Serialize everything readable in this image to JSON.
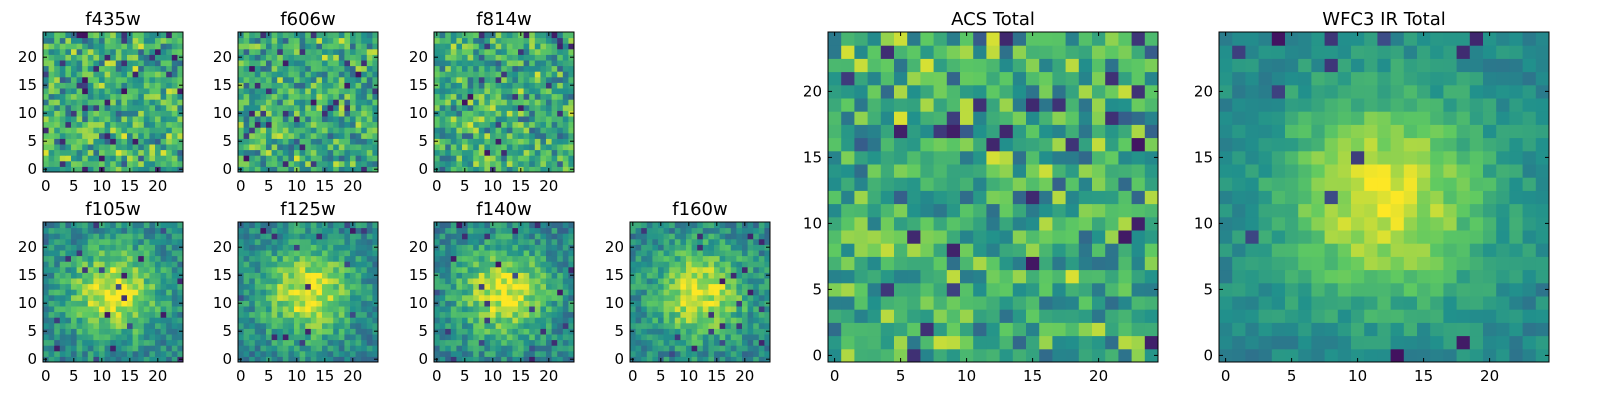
{
  "chart_data": [
    {
      "type": "heatmap",
      "title": "f435w",
      "xticks": [
        0,
        5,
        10,
        15,
        20
      ],
      "yticks": [
        0,
        5,
        10,
        15,
        20
      ],
      "xlim": [
        0,
        25
      ],
      "ylim": [
        0,
        25
      ],
      "grid": false,
      "seed": 11,
      "pattern": "noise"
    },
    {
      "type": "heatmap",
      "title": "f606w",
      "xticks": [
        0,
        5,
        10,
        15,
        20
      ],
      "yticks": [
        0,
        5,
        10,
        15,
        20
      ],
      "xlim": [
        0,
        25
      ],
      "ylim": [
        0,
        25
      ],
      "grid": false,
      "seed": 23,
      "pattern": "noise"
    },
    {
      "type": "heatmap",
      "title": "f814w",
      "xticks": [
        0,
        5,
        10,
        15,
        20
      ],
      "yticks": [
        0,
        5,
        10,
        15,
        20
      ],
      "xlim": [
        0,
        25
      ],
      "ylim": [
        0,
        25
      ],
      "grid": false,
      "seed": 37,
      "pattern": "noise"
    },
    {
      "type": "heatmap",
      "title": "f105w",
      "xticks": [
        0,
        5,
        10,
        15,
        20
      ],
      "yticks": [
        0,
        5,
        10,
        15,
        20
      ],
      "xlim": [
        0,
        25
      ],
      "ylim": [
        0,
        25
      ],
      "grid": false,
      "seed": 41,
      "pattern": "blob"
    },
    {
      "type": "heatmap",
      "title": "f125w",
      "xticks": [
        0,
        5,
        10,
        15,
        20
      ],
      "yticks": [
        0,
        5,
        10,
        15,
        20
      ],
      "xlim": [
        0,
        25
      ],
      "ylim": [
        0,
        25
      ],
      "grid": false,
      "seed": 53,
      "pattern": "blob"
    },
    {
      "type": "heatmap",
      "title": "f140w",
      "xticks": [
        0,
        5,
        10,
        15,
        20
      ],
      "yticks": [
        0,
        5,
        10,
        15,
        20
      ],
      "xlim": [
        0,
        25
      ],
      "ylim": [
        0,
        25
      ],
      "grid": false,
      "seed": 67,
      "pattern": "blob"
    },
    {
      "type": "heatmap",
      "title": "f160w",
      "xticks": [
        0,
        5,
        10,
        15,
        20
      ],
      "yticks": [
        0,
        5,
        10,
        15,
        20
      ],
      "xlim": [
        0,
        25
      ],
      "ylim": [
        0,
        25
      ],
      "grid": false,
      "seed": 71,
      "pattern": "blob"
    },
    {
      "type": "heatmap",
      "title": "ACS Total",
      "xticks": [
        0,
        5,
        10,
        15,
        20
      ],
      "yticks": [
        0,
        5,
        10,
        15,
        20
      ],
      "xlim": [
        0,
        25
      ],
      "ylim": [
        0,
        25
      ],
      "grid": false,
      "seed": 89,
      "pattern": "noise"
    },
    {
      "type": "heatmap",
      "title": "WFC3 IR Total",
      "xticks": [
        0,
        5,
        10,
        15,
        20
      ],
      "yticks": [
        0,
        5,
        10,
        15,
        20
      ],
      "xlim": [
        0,
        25
      ],
      "ylim": [
        0,
        25
      ],
      "grid": false,
      "seed": 97,
      "pattern": "blob-smooth"
    }
  ],
  "colormap": [
    "#440154",
    "#3b528b",
    "#21918c",
    "#5ec962",
    "#fde725"
  ],
  "frame_color": "#000000"
}
